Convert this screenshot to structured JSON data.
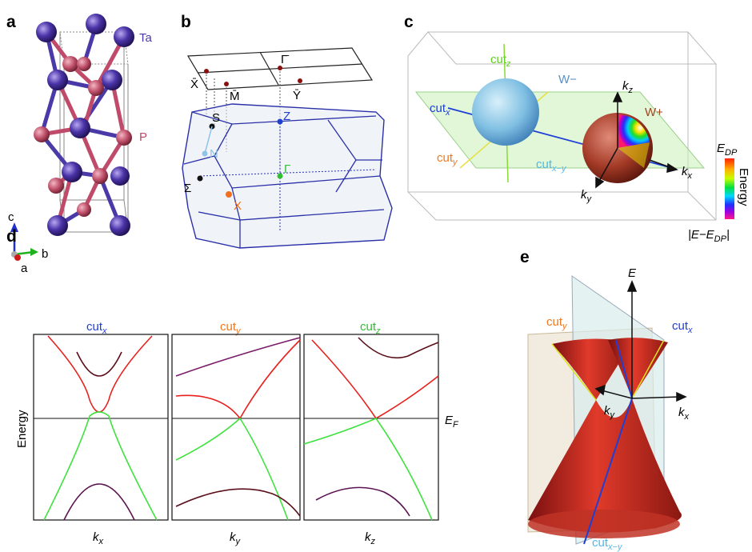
{
  "panels": {
    "a": {
      "letter": "a",
      "atom_ta": "Ta",
      "atom_p": "P",
      "axis_c": "c",
      "axis_b": "b",
      "axis_a": "a"
    },
    "b": {
      "letter": "b",
      "points": {
        "xbar": "X̄",
        "gammabar": "Γ̄",
        "mbar": "M̄",
        "ybar": "Ȳ",
        "s": "S",
        "z": "Z",
        "n": "N",
        "gamma": "Γ",
        "sigma": "Σ",
        "x": "X"
      }
    },
    "c": {
      "letter": "c",
      "cut_z_main": "cut",
      "cut_z_sub": "z",
      "w_minus": "W−",
      "w_plus": "W+",
      "cut_x_main": "cut",
      "cut_x_sub": "x",
      "cut_y_main": "cut",
      "cut_y_sub": "y",
      "cut_xy_main": "cut",
      "cut_xy_sub": "x−y",
      "kz_main": "k",
      "kz_sub": "z",
      "kx_main": "k",
      "kx_sub": "x",
      "ky_main": "k",
      "ky_sub": "y",
      "colorbar_top_main": "E",
      "colorbar_top_sub": "DP",
      "colorbar_label": "Energy",
      "colorbar_bottom_main": "|E−E",
      "colorbar_bottom_sub": "DP",
      "colorbar_bottom_end": "|",
      "colors": {
        "cut_x": "#1f3fd6",
        "cut_y": "#f07820",
        "cut_z": "#5fd21f",
        "cut_xy": "#4fb8e8",
        "w_minus": "#5a8fc8",
        "w_plus": "#a3441f"
      }
    },
    "d": {
      "letter": "d",
      "ylabel": "Energy",
      "fermi_main": "E",
      "fermi_sub": "F",
      "subplots": [
        {
          "title_main": "cut",
          "title_sub": "x",
          "xlabel_main": "k",
          "xlabel_sub": "x",
          "color": "#1f3fd6"
        },
        {
          "title_main": "cut",
          "title_sub": "y",
          "xlabel_main": "k",
          "xlabel_sub": "y",
          "color": "#f07820"
        },
        {
          "title_main": "cut",
          "title_sub": "z",
          "xlabel_main": "k",
          "xlabel_sub": "z",
          "color": "#2fbf2f"
        }
      ],
      "band_colors": {
        "upper": "#e8201c",
        "upper_dark": "#5a0f1a",
        "lower": "#3fe23f",
        "lower_dark": "#5a1450"
      }
    },
    "e": {
      "letter": "e",
      "axis_e": "E",
      "cut_y_main": "cut",
      "cut_y_sub": "y",
      "cut_x_main": "cut",
      "cut_x_sub": "x",
      "ky_main": "k",
      "ky_sub": "y",
      "kx_main": "k",
      "kx_sub": "x",
      "cut_xy_main": "cut",
      "cut_xy_sub": "x−y"
    }
  }
}
